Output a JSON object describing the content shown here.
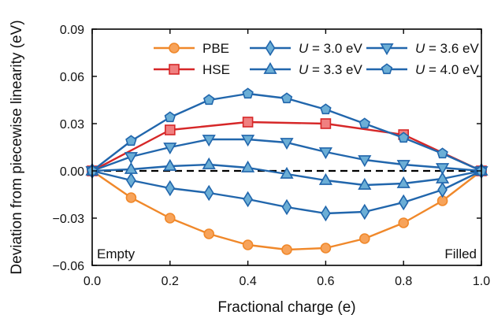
{
  "chart_data": {
    "type": "line",
    "xlabel": "Fractional charge (e)",
    "ylabel": "Deviation from piecewise linearity (eV)",
    "xlim": [
      0.0,
      1.0
    ],
    "ylim": [
      -0.06,
      0.09
    ],
    "x_ticks": [
      "0.0",
      "0.2",
      "0.4",
      "0.6",
      "0.8",
      "1.0"
    ],
    "y_ticks": [
      "−0.06",
      "−0.03",
      "0.00",
      "0.03",
      "0.06",
      "0.09"
    ],
    "grid": false,
    "legend_position": "top-right",
    "annotations": {
      "left": "Empty",
      "right": "Filled"
    },
    "zero_line": {
      "style": "dashed",
      "color": "#000000"
    },
    "series": [
      {
        "name": "PBE",
        "color": "#f0882a",
        "fill": "#f7a35a",
        "marker": "circle",
        "x": [
          0.0,
          0.1,
          0.2,
          0.3,
          0.4,
          0.5,
          0.6,
          0.7,
          0.8,
          0.9,
          1.0
        ],
        "y": [
          0.0,
          -0.017,
          -0.03,
          -0.04,
          -0.047,
          -0.05,
          -0.049,
          -0.043,
          -0.033,
          -0.019,
          0.0
        ]
      },
      {
        "name": "HSE",
        "color": "#d62728",
        "fill": "#f08080",
        "marker": "square",
        "x": [
          0.0,
          0.2,
          0.4,
          0.6,
          0.8,
          1.0
        ],
        "y": [
          0.0,
          0.026,
          0.031,
          0.03,
          0.023,
          0.0
        ]
      },
      {
        "name_prefix": "U",
        "name_suffix": " = 3.0 eV",
        "color": "#2166ac",
        "fill": "#6baed6",
        "marker": "diamond",
        "x": [
          0.0,
          0.1,
          0.2,
          0.3,
          0.4,
          0.5,
          0.6,
          0.7,
          0.8,
          0.9,
          1.0
        ],
        "y": [
          0.0,
          -0.006,
          -0.011,
          -0.014,
          -0.018,
          -0.023,
          -0.027,
          -0.026,
          -0.02,
          -0.012,
          0.0
        ]
      },
      {
        "name_prefix": "U",
        "name_suffix": " = 3.3 eV",
        "color": "#2166ac",
        "fill": "#6baed6",
        "marker": "triangle-up",
        "x": [
          0.0,
          0.1,
          0.2,
          0.3,
          0.4,
          0.5,
          0.6,
          0.7,
          0.8,
          0.9,
          1.0
        ],
        "y": [
          0.0,
          0.001,
          0.003,
          0.004,
          0.002,
          -0.002,
          -0.006,
          -0.009,
          -0.008,
          -0.005,
          0.0
        ]
      },
      {
        "name_prefix": "U",
        "name_suffix": " = 3.6 eV",
        "color": "#2166ac",
        "fill": "#6baed6",
        "marker": "triangle-down",
        "x": [
          0.0,
          0.1,
          0.2,
          0.3,
          0.4,
          0.5,
          0.6,
          0.7,
          0.8,
          0.9,
          1.0
        ],
        "y": [
          0.0,
          0.009,
          0.015,
          0.02,
          0.02,
          0.018,
          0.012,
          0.007,
          0.004,
          0.002,
          0.0
        ]
      },
      {
        "name_prefix": "U",
        "name_suffix": " = 4.0 eV",
        "color": "#2166ac",
        "fill": "#6baed6",
        "marker": "pentagon",
        "x": [
          0.0,
          0.1,
          0.2,
          0.3,
          0.4,
          0.5,
          0.6,
          0.7,
          0.8,
          0.9,
          1.0
        ],
        "y": [
          0.0,
          0.019,
          0.034,
          0.045,
          0.049,
          0.046,
          0.039,
          0.03,
          0.021,
          0.011,
          0.0
        ]
      }
    ]
  }
}
